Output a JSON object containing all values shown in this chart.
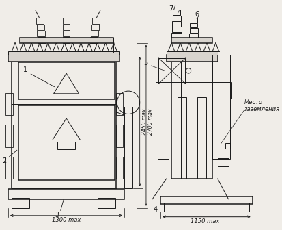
{
  "bg_color": "#f0ede8",
  "line_color": "#1a1a1a",
  "lw": 0.7,
  "lw2": 1.1,
  "dim_1300": "1300 max",
  "dim_1150": "1150 max",
  "dim_2450": "2450 max",
  "dim_2700": "2700 max",
  "mesto_zazemleniya": "Место\nзаземления"
}
